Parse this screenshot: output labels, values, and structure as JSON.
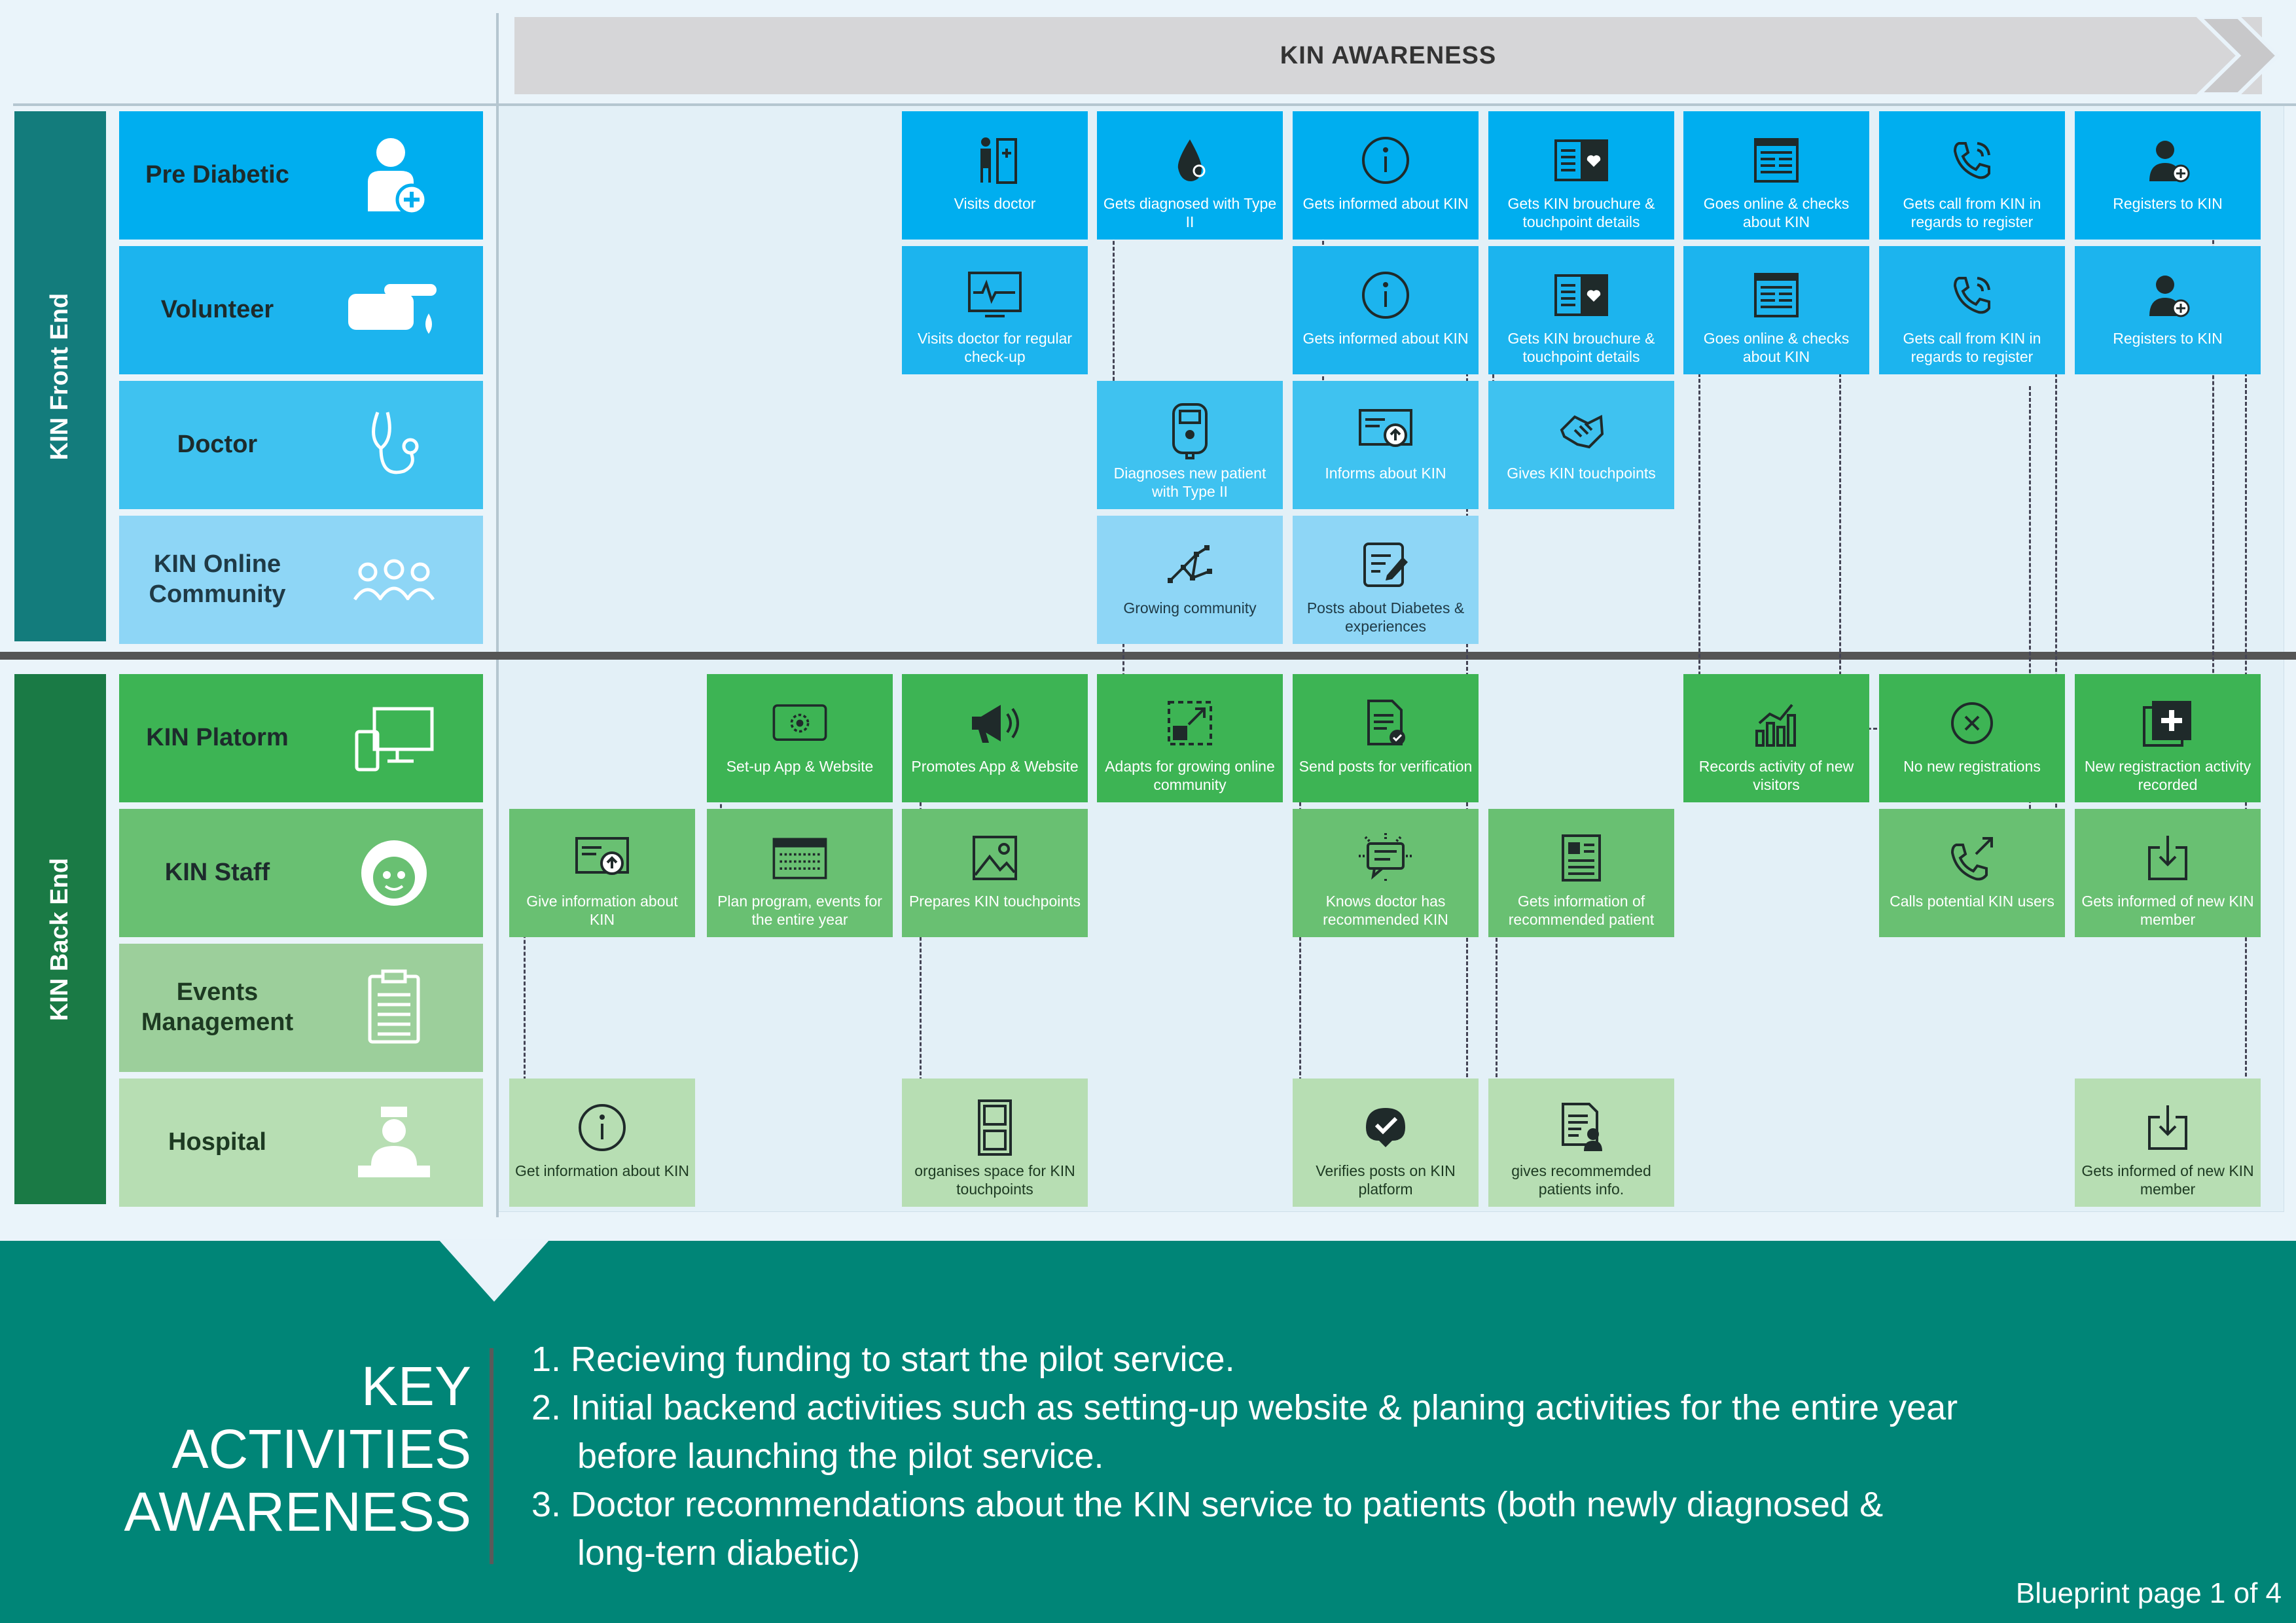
{
  "banner": {
    "title": "KIN AWARENESS"
  },
  "sections": {
    "front": "KIN Front End",
    "back": "KIN Back End"
  },
  "lanes": [
    {
      "label": "Pre Diabetic",
      "icon": "patient-plus-icon"
    },
    {
      "label": "Volunteer",
      "icon": "hand-drop-icon"
    },
    {
      "label": "Doctor",
      "icon": "stethoscope-icon"
    },
    {
      "label": "KIN Online Community",
      "icon": "group-icon"
    },
    {
      "label": "KIN Platorm",
      "icon": "devices-icon"
    },
    {
      "label": "KIN Staff",
      "icon": "staff-face-icon"
    },
    {
      "label": "Events Management",
      "icon": "clipboard-icon"
    },
    {
      "label": "Hospital",
      "icon": "nurse-icon"
    }
  ],
  "cards": {
    "pre_diabetic": [
      {
        "col": 2,
        "text": "Visits doctor",
        "icon": "visit-doctor-icon"
      },
      {
        "col": 3,
        "text": "Gets diagnosed with Type II",
        "icon": "blood-drop-icon"
      },
      {
        "col": 4,
        "text": "Gets informed about KIN",
        "icon": "info-icon"
      },
      {
        "col": 5,
        "text": "Gets KIN brouchure & touchpoint details",
        "icon": "brochure-icon"
      },
      {
        "col": 6,
        "text": "Goes online & checks about KIN",
        "icon": "website-icon"
      },
      {
        "col": 7,
        "text": "Gets call from KIN in regards to register",
        "icon": "phone-call-icon"
      },
      {
        "col": 8,
        "text": "Registers to KIN",
        "icon": "user-add-icon"
      }
    ],
    "volunteer": [
      {
        "col": 2,
        "text": "Visits doctor for regular check-up",
        "icon": "monitor-icon"
      },
      {
        "col": 4,
        "text": "Gets informed about KIN",
        "icon": "info-icon"
      },
      {
        "col": 5,
        "text": "Gets KIN brouchure & touchpoint details",
        "icon": "brochure-icon"
      },
      {
        "col": 6,
        "text": "Goes online & checks about KIN",
        "icon": "website-icon"
      },
      {
        "col": 7,
        "text": "Gets call from KIN in regards to register",
        "icon": "phone-call-icon"
      },
      {
        "col": 8,
        "text": "Registers to KIN",
        "icon": "user-add-icon"
      }
    ],
    "doctor": [
      {
        "col": 3,
        "text": "Diagnoses new patient with Type II",
        "icon": "glucometer-icon"
      },
      {
        "col": 4,
        "text": "Informs about KIN",
        "icon": "upload-screen-icon"
      },
      {
        "col": 5,
        "text": "Gives KIN touchpoints",
        "icon": "handshake-icon"
      }
    ],
    "community": [
      {
        "col": 3,
        "text": "Growing community",
        "icon": "network-icon"
      },
      {
        "col": 4,
        "text": "Posts about Diabetes & experiences",
        "icon": "edit-post-icon"
      }
    ],
    "platform": [
      {
        "col": 1,
        "text": "Set-up App & Website",
        "icon": "app-settings-icon"
      },
      {
        "col": 2,
        "text": "Promotes App & Website",
        "icon": "megaphone-icon"
      },
      {
        "col": 3,
        "text": "Adapts for growing online community",
        "icon": "expand-icon"
      },
      {
        "col": 4,
        "text": "Send posts for verification",
        "icon": "document-check-icon"
      },
      {
        "col": 6,
        "text": "Records activity of new visitors",
        "icon": "bar-chart-icon"
      },
      {
        "col": 7,
        "text": "No new registrations",
        "icon": "close-circle-icon"
      },
      {
        "col": 8,
        "text": "New registraction activity recorded",
        "icon": "add-box-icon"
      }
    ],
    "staff": [
      {
        "col": 0,
        "text": "Give information about KIN",
        "icon": "upload-screen-icon"
      },
      {
        "col": 1,
        "text": "Plan program, events for the entire year",
        "icon": "calendar-icon"
      },
      {
        "col": 2,
        "text": "Prepares KIN touchpoints",
        "icon": "image-icon"
      },
      {
        "col": 4,
        "text": "Knows doctor has recommended KIN",
        "icon": "chat-icon"
      },
      {
        "col": 5,
        "text": "Gets information of recommended patient",
        "icon": "profile-doc-icon"
      },
      {
        "col": 7,
        "text": "Calls potential KIN users",
        "icon": "outgoing-call-icon"
      },
      {
        "col": 8,
        "text": "Gets informed of new KIN member",
        "icon": "download-icon"
      }
    ],
    "hospital": [
      {
        "col": 0,
        "text": "Get information about KIN",
        "icon": "info-icon"
      },
      {
        "col": 2,
        "text": "organises space for KIN touchpoints",
        "icon": "cabinet-icon"
      },
      {
        "col": 4,
        "text": "Verifies posts on KIN platform",
        "icon": "verify-icon"
      },
      {
        "col": 5,
        "text": "gives recommemded patients info.",
        "icon": "patient-doc-icon"
      },
      {
        "col": 8,
        "text": "Gets informed of new KIN member",
        "icon": "download-icon"
      }
    ]
  },
  "key_activities": {
    "title_lines": [
      "KEY",
      "ACTIVITIES",
      "AWARENESS"
    ],
    "items": [
      "1. Recieving funding to start the pilot service.",
      "2. Initial backend activities such as setting-up website & planing activities for the entire year",
      "before launching the pilot service.",
      "3. Doctor recommendations about the KIN service to patients (both newly diagnosed &",
      "long-tern diabetic)"
    ]
  },
  "footer": {
    "page_note": "Blueprint page 1 of 4"
  },
  "colors": {
    "front_section": "#137c7c",
    "back_section": "#1a7a45",
    "blue_card": "#00aeef",
    "green_card": "#3db454",
    "footer": "#008577"
  }
}
